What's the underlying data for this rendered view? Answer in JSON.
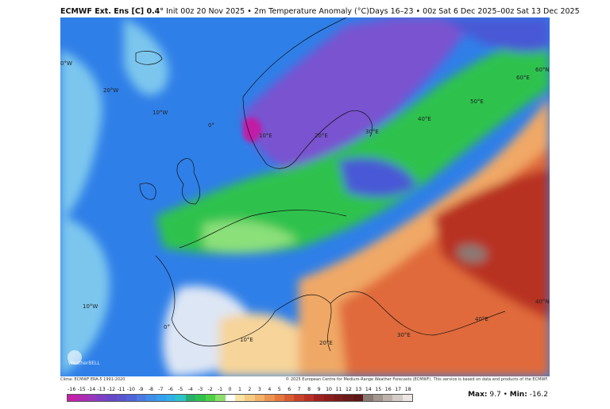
{
  "header": {
    "title_bold": "ECMWF Ext. Ens [C] 0.4°",
    "title_rest": "Init 00z 20 Nov 2025 • 2m Temperature Anomaly (°C)",
    "valid": "Days 16–23 • 00z Sat 6 Dec 2025–00z Sat 13 Dec 2025"
  },
  "credits": {
    "left": "Clima: ECMWF ERA-5 1991-2020",
    "right": "© 2025 European Centre for Medium-Range Weather Forecasts (ECMWF). This service is based on data and products of the ECMWF."
  },
  "logo": {
    "text": "WeatherBELL"
  },
  "stats": {
    "max_label": "Max:",
    "max_value": "9.7",
    "min_label": "Min:",
    "min_value": "-16.2"
  },
  "colorbar": {
    "labels": [
      "-16",
      "-15",
      "-14",
      "-13",
      "-12",
      "-11",
      "-10",
      "-9",
      "-8",
      "-7",
      "-6",
      "-5",
      "-4",
      "-3",
      "-2",
      "-1",
      "0",
      "1",
      "2",
      "3",
      "4",
      "5",
      "6",
      "7",
      "8",
      "9",
      "10",
      "11",
      "12",
      "13",
      "14",
      "15",
      "16",
      "17",
      "18"
    ],
    "colors": [
      "#c61fa8",
      "#b02ab3",
      "#9a37bd",
      "#7e3fc6",
      "#6847c9",
      "#5a55cf",
      "#5064d8",
      "#4a7be3",
      "#3f8fea",
      "#35a0ee",
      "#2fb0e8",
      "#2ec3c9",
      "#27b06d",
      "#2fc24e",
      "#4ed145",
      "#8be06c",
      "#ffffff",
      "#fbe3a4",
      "#f6cc83",
      "#f2b164",
      "#ec934e",
      "#e5763d",
      "#d85b31",
      "#c8432a",
      "#b83024",
      "#a0221e",
      "#8c1d1c",
      "#7a1b1b",
      "#6a1919",
      "#5c1818",
      "#8a7a74",
      "#a3968f",
      "#bcb2ab",
      "#d4ccc6",
      "#ece7e3"
    ]
  },
  "map": {
    "lon_labels": [
      "0°W",
      "20°W",
      "10°W",
      "0°",
      "10°E",
      "20°E",
      "30°E",
      "40°E",
      "50°E",
      "60°E",
      "60°N",
      "10°W",
      "0°",
      "10°E",
      "20°E",
      "30°E",
      "40°E",
      "40°N"
    ],
    "lat_labels": [],
    "colors": {
      "ocean_deep": "#2f7fe8",
      "ocean_light": "#7cc6ee",
      "ocean_pale": "#dde6f4",
      "warm_pale": "#f6d49a",
      "warm_mid": "#f0a866",
      "warm_hot": "#e06a3a",
      "warm_dark": "#b83024",
      "cold_purple": "#7a52d0",
      "cold_violet": "#4a58d6",
      "cold_magenta": "#c01ea6",
      "green_bright": "#2fc24e",
      "green_pale": "#8be07a",
      "gray_peak": "#8a7a74"
    }
  }
}
